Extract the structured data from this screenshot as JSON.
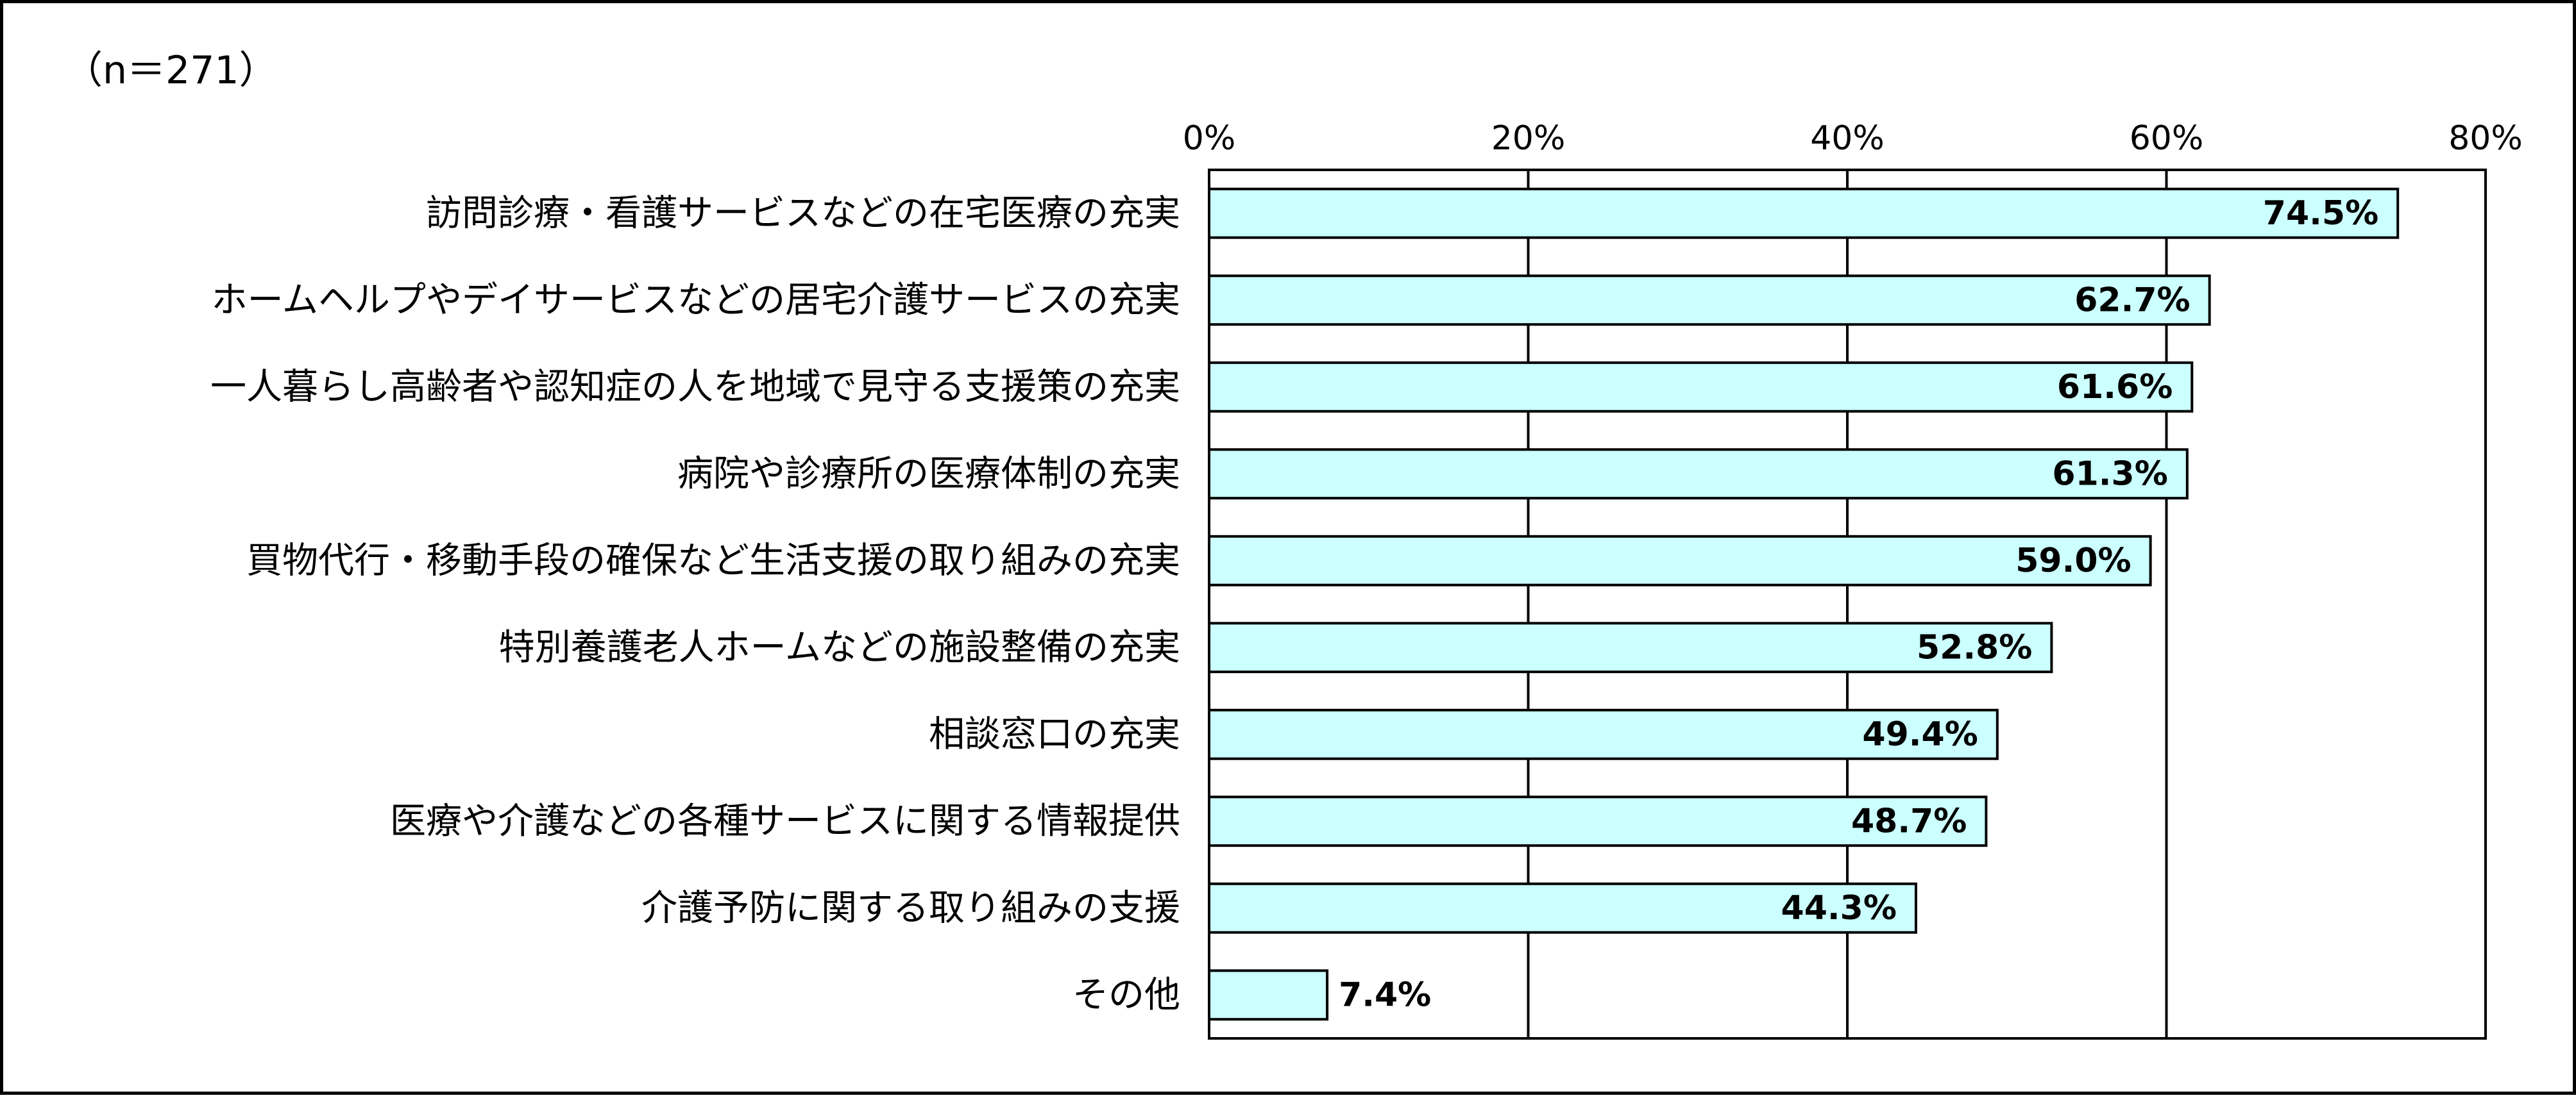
{
  "chart_data": {
    "type": "bar",
    "orientation": "horizontal",
    "annotation": "（n＝271）",
    "categories": [
      "訪問診療・看護サービスなどの在宅医療の充実",
      "ホームヘルプやデイサービスなどの居宅介護サービスの充実",
      "一人暮らし高齢者や認知症の人を地域で見守る支援策の充実",
      "病院や診療所の医療体制の充実",
      "買物代行・移動手段の確保など生活支援の取り組みの充実",
      "特別養護老人ホームなどの施設整備の充実",
      "相談窓口の充実",
      "医療や介護などの各種サービスに関する情報提供",
      "介護予防に関する取り組みの支援",
      "その他"
    ],
    "values": [
      74.5,
      62.7,
      61.6,
      61.3,
      59.0,
      52.8,
      49.4,
      48.7,
      44.3,
      7.4
    ],
    "value_labels": [
      "74.5%",
      "62.7%",
      "61.6%",
      "61.3%",
      "59.0%",
      "52.8%",
      "49.4%",
      "48.7%",
      "44.3%",
      "7.4%"
    ],
    "xlim": [
      0,
      80
    ],
    "ticks": [
      0,
      20,
      40,
      60,
      80
    ],
    "tick_labels": [
      "0%",
      "20%",
      "40%",
      "60%",
      "80%"
    ],
    "tick_position": "top",
    "grid": true,
    "legend": false,
    "bar_color": "#ccffff",
    "bar_edge_color": "#000000",
    "grid_color": "#000000"
  }
}
